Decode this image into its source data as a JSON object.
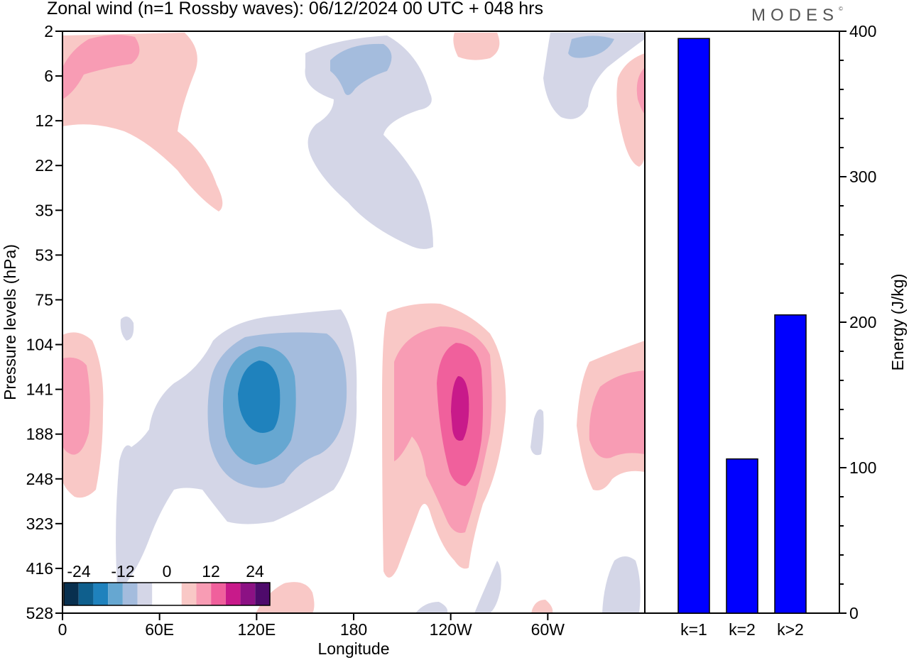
{
  "title": "Zonal wind (n=1 Rossby waves):  06/12/2024  00 UTC  + 048 hrs",
  "logo": "MODES",
  "logo_mark": "©",
  "chart_data": [
    {
      "type": "heatmap",
      "xlabel": "Longitude",
      "ylabel": "Pressure levels (hPa)",
      "x_ticks": [
        "0",
        "60E",
        "120E",
        "180",
        "120W",
        "60W"
      ],
      "y_ticks": [
        "2",
        "6",
        "12",
        "22",
        "35",
        "53",
        "75",
        "104",
        "141",
        "188",
        "248",
        "323",
        "416",
        "528"
      ],
      "colorbar": {
        "labels": [
          "-24",
          "-12",
          "0",
          "12",
          "24"
        ],
        "colors": [
          "#08304f",
          "#0f5f8d",
          "#1f82bd",
          "#66a7d1",
          "#a4bcdd",
          "#d4d6e7",
          "#ffffff",
          "#ffffff",
          "#f9c8c6",
          "#f89cb4",
          "#f0609c",
          "#c81a8a",
          "#8c1184",
          "#4e0a6b"
        ]
      },
      "colors": {
        "blue1": "#d4d6e7",
        "blue2": "#a4bcdd",
        "blue3": "#66a7d1",
        "blue4": "#1f82bd",
        "pink1": "#f9c8c6",
        "pink2": "#f89cb4",
        "pink3": "#f0609c",
        "pink4": "#c81a8a"
      }
    },
    {
      "type": "bar",
      "categories": [
        "k=1",
        "k=2",
        "k>2"
      ],
      "values": [
        395,
        106,
        205
      ],
      "ylabel": "Energy (J/kg)",
      "ylim": [
        0,
        400
      ],
      "y_ticks": [
        "0",
        "100",
        "200",
        "300",
        "400"
      ],
      "bar_color": "#0000ff"
    }
  ]
}
